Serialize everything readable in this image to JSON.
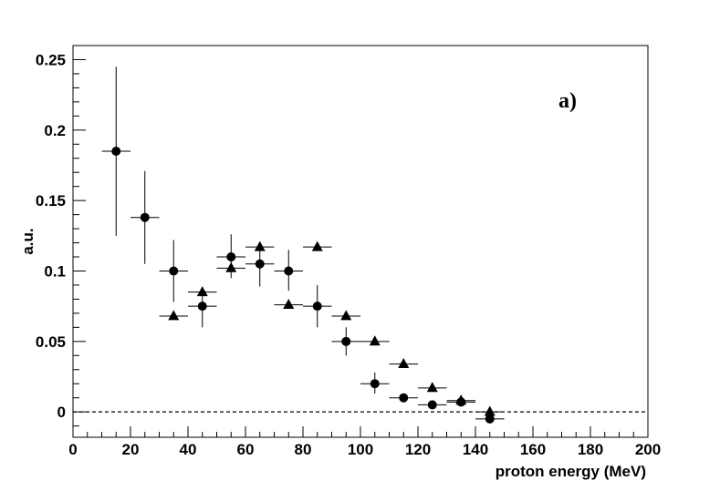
{
  "chart_data": {
    "type": "scatter",
    "title": "",
    "panel_label": "a)",
    "xlabel": "proton energy (MeV)",
    "ylabel": "a.u.",
    "xlim": [
      0,
      200
    ],
    "ylim": [
      -0.018,
      0.26
    ],
    "x_ticks": [
      0,
      20,
      40,
      60,
      80,
      100,
      120,
      140,
      160,
      180,
      200
    ],
    "x_tick_labels": [
      "0",
      "20",
      "40",
      "60",
      "80",
      "100",
      "120",
      "140",
      "160",
      "180",
      "200"
    ],
    "y_ticks": [
      0,
      0.05,
      0.1,
      0.15,
      0.2,
      0.25
    ],
    "y_tick_labels": [
      "0",
      "0.05",
      "0.1",
      "0.15",
      "0.2",
      "0.25"
    ],
    "reference_line": {
      "y": 0,
      "style": "dashed"
    },
    "grid": false,
    "series": [
      {
        "marker": "circle",
        "color": "#000000",
        "points": [
          {
            "x": 15,
            "y": 0.185,
            "xerr": 5,
            "yerr_lo": 0.06,
            "yerr_hi": 0.06
          },
          {
            "x": 25,
            "y": 0.138,
            "xerr": 5,
            "yerr_lo": 0.033,
            "yerr_hi": 0.033
          },
          {
            "x": 35,
            "y": 0.1,
            "xerr": 5,
            "yerr_lo": 0.022,
            "yerr_hi": 0.022
          },
          {
            "x": 45,
            "y": 0.075,
            "xerr": 5,
            "yerr_lo": 0.015,
            "yerr_hi": 0.01
          },
          {
            "x": 55,
            "y": 0.11,
            "xerr": 5,
            "yerr_lo": 0.015,
            "yerr_hi": 0.016
          },
          {
            "x": 65,
            "y": 0.105,
            "xerr": 5,
            "yerr_lo": 0.016,
            "yerr_hi": 0.01
          },
          {
            "x": 75,
            "y": 0.1,
            "xerr": 5,
            "yerr_lo": 0.014,
            "yerr_hi": 0.015
          },
          {
            "x": 85,
            "y": 0.075,
            "xerr": 5,
            "yerr_lo": 0.015,
            "yerr_hi": 0.015
          },
          {
            "x": 95,
            "y": 0.05,
            "xerr": 5,
            "yerr_lo": 0.01,
            "yerr_hi": 0.01
          },
          {
            "x": 105,
            "y": 0.02,
            "xerr": 5,
            "yerr_lo": 0.007,
            "yerr_hi": 0.008
          },
          {
            "x": 115,
            "y": 0.01,
            "xerr": 5,
            "yerr_lo": 0.003,
            "yerr_hi": 0.003
          },
          {
            "x": 125,
            "y": 0.005,
            "xerr": 5,
            "yerr_lo": 0.002,
            "yerr_hi": 0.002
          },
          {
            "x": 135,
            "y": 0.007,
            "xerr": 5,
            "yerr_lo": 0.002,
            "yerr_hi": 0.002
          },
          {
            "x": 145,
            "y": -0.005,
            "xerr": 5,
            "yerr_lo": 0.002,
            "yerr_hi": 0.002
          }
        ]
      },
      {
        "marker": "triangle",
        "color": "#000000",
        "points": [
          {
            "x": 35,
            "y": 0.068,
            "xerr": 5
          },
          {
            "x": 45,
            "y": 0.085,
            "xerr": 5
          },
          {
            "x": 55,
            "y": 0.102,
            "xerr": 5
          },
          {
            "x": 65,
            "y": 0.117,
            "xerr": 5
          },
          {
            "x": 75,
            "y": 0.076,
            "xerr": 5
          },
          {
            "x": 85,
            "y": 0.117,
            "xerr": 5
          },
          {
            "x": 95,
            "y": 0.068,
            "xerr": 5
          },
          {
            "x": 105,
            "y": 0.05,
            "xerr": 5
          },
          {
            "x": 115,
            "y": 0.034,
            "xerr": 5
          },
          {
            "x": 125,
            "y": 0.017,
            "xerr": 5
          },
          {
            "x": 135,
            "y": 0.008,
            "xerr": 5
          },
          {
            "x": 145,
            "y": 0.0,
            "xerr": 5
          }
        ]
      }
    ]
  }
}
